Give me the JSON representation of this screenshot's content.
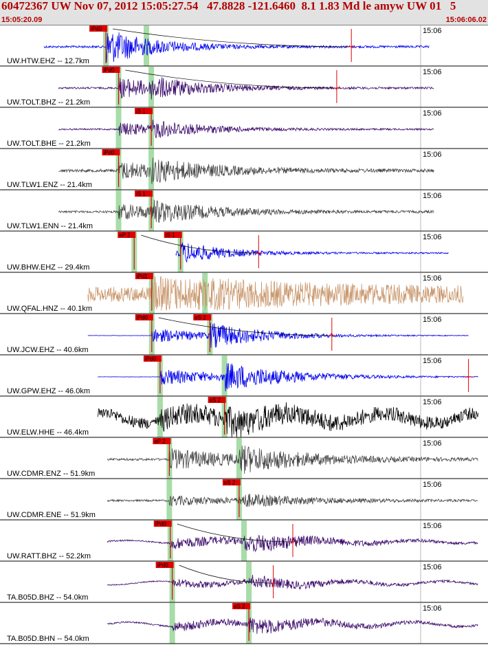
{
  "header": {
    "title": "60472367 UW Nov 07, 2012 15:05:27.54   47.8828 -121.6460  8.1 1.83 Md le amyw UW 01   5",
    "start_time": "15:05:20.09",
    "end_time": "15:06:06.02"
  },
  "time_tick_label": "15:06",
  "colors": {
    "header_text": "#b30000",
    "pick": "#e00000",
    "window": "#a8dca8"
  },
  "traces": [
    {
      "label": "UW.HTW.EHZ -- 12.7km",
      "color": "#0000ee",
      "p_pick": "iPd0",
      "s_pick": "",
      "start": 0.0,
      "end": 0.88,
      "amp": 0.95,
      "noise": 0.06,
      "p": 0.217,
      "s": 0.3,
      "s_amp": 0.0,
      "decay": 0.1,
      "wander": 0.0,
      "hrise": 0.72,
      "rpick": true
    },
    {
      "label": "UW.TOLT.BHZ -- 21.2km",
      "color": "#3a0a6a",
      "p_pick": "iPd0",
      "s_pick": "",
      "start": 0.03,
      "end": 0.89,
      "amp": 0.55,
      "noise": 0.05,
      "p": 0.243,
      "s": 0.31,
      "s_amp": 0.6,
      "decay": 0.12,
      "wander": 0.0,
      "hrise": 0.69,
      "rpick": true
    },
    {
      "label": "UW.TOLT.BHE -- 21.2km",
      "color": "#3a0a6a",
      "p_pick": "",
      "s_pick": "iS 1",
      "start": 0.03,
      "end": 0.89,
      "amp": 0.35,
      "noise": 0.04,
      "p": 0.243,
      "s": 0.31,
      "s_amp": 0.9,
      "decay": 0.12,
      "wander": 0.0,
      "hrise": 0.0,
      "rpick": false
    },
    {
      "label": "UW.TLW1.ENZ -- 21.4km",
      "color": "#444444",
      "p_pick": "iPd0",
      "s_pick": "",
      "start": 0.03,
      "end": 0.89,
      "amp": 0.45,
      "noise": 0.08,
      "p": 0.243,
      "s": 0.31,
      "s_amp": 0.9,
      "decay": 0.14,
      "wander": 0.0,
      "hrise": 0.0,
      "rpick": false
    },
    {
      "label": "UW.TLW1.ENN -- 21.4km",
      "color": "#444444",
      "p_pick": "",
      "s_pick": "iS 1",
      "start": 0.03,
      "end": 0.89,
      "amp": 0.4,
      "noise": 0.06,
      "p": 0.243,
      "s": 0.31,
      "s_amp": 1.0,
      "decay": 0.14,
      "wander": 0.0,
      "hrise": 0.0,
      "rpick": false
    },
    {
      "label": "UW.BHW.EHZ -- 29.4km",
      "color": "#0000ee",
      "p_pick": "eP 2",
      "s_pick": "iS 1",
      "start": 0.27,
      "end": 0.92,
      "amp": 0.35,
      "noise": 0.04,
      "p": 0.275,
      "s": 0.37,
      "s_amp": 1.3,
      "decay": 0.1,
      "wander": 0.0,
      "hrise": 0.53,
      "rpick": true
    },
    {
      "label": "UW.QFAL.HNZ -- 40.1km",
      "color": "#c8956a",
      "p_pick": "iPd1",
      "s_pick": "",
      "start": 0.09,
      "end": 0.95,
      "amp": 0.6,
      "noise": 0.4,
      "p": 0.311,
      "s": 0.42,
      "s_amp": 0.2,
      "decay": 0.3,
      "wander": 0.0,
      "hrise": 0.0,
      "rpick": false
    },
    {
      "label": "UW.JCW.EHZ -- 40.6km",
      "color": "#0000ee",
      "p_pick": "iPd0",
      "s_pick": "eS 2",
      "start": 0.09,
      "end": 0.96,
      "amp": 0.4,
      "noise": 0.01,
      "p": 0.311,
      "s": 0.43,
      "s_amp": 1.4,
      "decay": 0.13,
      "wander": 0.0,
      "hrise": 0.68,
      "rpick": true
    },
    {
      "label": "UW.GPW.EHZ -- 46.0km",
      "color": "#0000ee",
      "p_pick": "iPd0",
      "s_pick": "",
      "start": 0.11,
      "end": 0.98,
      "amp": 0.45,
      "noise": 0.01,
      "p": 0.328,
      "s": 0.46,
      "s_amp": 1.4,
      "decay": 0.15,
      "wander": 0.0,
      "hrise": 0.0,
      "rpick": true
    },
    {
      "label": "UW.ELW.HHE -- 46.4km",
      "color": "#000000",
      "p_pick": "",
      "s_pick": "eS 2",
      "start": 0.11,
      "end": 0.98,
      "amp": 0.35,
      "noise": 0.3,
      "p": 0.328,
      "s": 0.46,
      "s_amp": 1.1,
      "decay": 0.2,
      "wander": 0.28,
      "hrise": 0.0,
      "rpick": false
    },
    {
      "label": "UW.CDMR.ENZ -- 51.9km",
      "color": "#444444",
      "p_pick": "eP 2",
      "s_pick": "",
      "start": 0.13,
      "end": 0.98,
      "amp": 0.55,
      "noise": 0.06,
      "p": 0.347,
      "s": 0.49,
      "s_amp": 1.0,
      "decay": 0.16,
      "wander": 0.0,
      "hrise": 0.0,
      "rpick": false
    },
    {
      "label": "UW.CDMR.ENE -- 51.9km",
      "color": "#444444",
      "p_pick": "",
      "s_pick": "eS 2",
      "start": 0.13,
      "end": 0.98,
      "amp": 0.25,
      "noise": 0.05,
      "p": 0.347,
      "s": 0.49,
      "s_amp": 1.1,
      "decay": 0.16,
      "wander": 0.0,
      "hrise": 0.0,
      "rpick": false
    },
    {
      "label": "UW.RATT.BHZ -- 52.2km",
      "color": "#3a0a6a",
      "p_pick": "iPd0",
      "s_pick": "",
      "start": 0.13,
      "end": 0.98,
      "amp": 0.3,
      "noise": 0.04,
      "p": 0.349,
      "s": 0.5,
      "s_amp": 1.3,
      "decay": 0.18,
      "wander": 0.08,
      "hrise": 0.6,
      "rpick": true
    },
    {
      "label": "TA.B05D.BHZ -- 54.0km",
      "color": "#3a0a6a",
      "p_pick": "iPd0",
      "s_pick": "",
      "start": 0.13,
      "end": 0.98,
      "amp": 0.2,
      "noise": 0.03,
      "p": 0.353,
      "s": 0.51,
      "s_amp": 1.2,
      "decay": 0.2,
      "wander": 0.1,
      "hrise": 0.56,
      "rpick": true
    },
    {
      "label": "TA.B05D.BHN -- 54.0km",
      "color": "#3a0a6a",
      "p_pick": "",
      "s_pick": "eS 2",
      "start": 0.13,
      "end": 0.98,
      "amp": 0.25,
      "noise": 0.04,
      "p": 0.353,
      "s": 0.51,
      "s_amp": 1.4,
      "decay": 0.18,
      "wander": 0.12,
      "hrise": 0.0,
      "rpick": false
    }
  ]
}
